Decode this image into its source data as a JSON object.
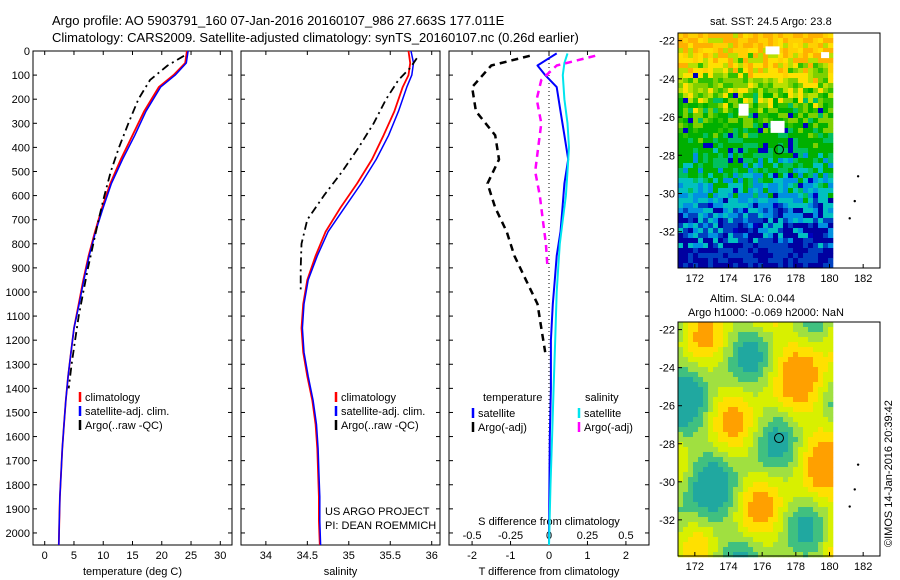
{
  "header": {
    "line1": "Argo profile: AO 5903791_160 07-Jan-2016 20160107_986 27.663S 177.011E",
    "line2": "Climatology: CARS2009. Satellite-adjusted climatology: synTS_20160107.nc (0.26d earlier)"
  },
  "map_top": {
    "title": "sat. SST: 24.5  Argo: 23.8",
    "yticks": [
      "-22",
      "-24",
      "-26",
      "-28",
      "-30",
      "-32"
    ],
    "xticks": [
      "172",
      "174",
      "176",
      "178",
      "180",
      "182"
    ],
    "float_lon": 177.0,
    "float_lat": -27.7
  },
  "map_bottom": {
    "title_line1": "Altim. SLA: 0.044",
    "title_line2": "Argo h1000: -0.069 h2000: NaN",
    "yticks": [
      "-22",
      "-24",
      "-26",
      "-28",
      "-30",
      "-32"
    ],
    "xticks": [
      "172",
      "174",
      "176",
      "178",
      "180",
      "182"
    ],
    "float_lon": 177.0,
    "float_lat": -27.7
  },
  "credit": "©IMOS 14-Jan-2016 20:39:42",
  "project": {
    "line1": "US ARGO PROJECT",
    "line2": "PI: DEAN ROEMMICH"
  },
  "colors": {
    "climatology": "#ff0000",
    "satellite": "#0000ff",
    "argo": "#000000",
    "sal_satellite": "#00e5ee",
    "sal_argo": "#ff00ff"
  },
  "chart_data": [
    {
      "type": "line",
      "xlabel": "temperature (deg C)",
      "ylabel": "",
      "xlim": [
        -2,
        32
      ],
      "ylim": [
        2050,
        0
      ],
      "xticks": [
        "0",
        "5",
        "10",
        "15",
        "20",
        "25",
        "30"
      ],
      "yticks": [
        "0",
        "100",
        "200",
        "300",
        "400",
        "500",
        "600",
        "700",
        "800",
        "900",
        "1000",
        "1100",
        "1200",
        "1300",
        "1400",
        "1500",
        "1600",
        "1700",
        "1800",
        "1900",
        "2000"
      ],
      "legend": [
        "climatology",
        "satellite-adj. clim.",
        "Argo(..raw -QC)"
      ],
      "series": [
        {
          "name": "climatology",
          "x": [
            24.3,
            24.0,
            22.0,
            19.5,
            17.0,
            15.0,
            13.0,
            11.2,
            9.8,
            8.6,
            7.5,
            6.6,
            5.8,
            5.0,
            4.5,
            4.0,
            3.6,
            3.3,
            3.0,
            2.8,
            2.6,
            2.5,
            2.4
          ],
          "y": [
            0,
            50,
            100,
            150,
            250,
            350,
            450,
            550,
            650,
            750,
            850,
            950,
            1050,
            1150,
            1250,
            1350,
            1450,
            1550,
            1650,
            1750,
            1850,
            1950,
            2050
          ]
        },
        {
          "name": "satellite-adj. clim.",
          "x": [
            24.5,
            24.2,
            22.3,
            19.8,
            17.3,
            15.4,
            13.3,
            11.4,
            10.0,
            8.7,
            7.6,
            6.7,
            5.9,
            5.0,
            4.5,
            4.0,
            3.6,
            3.3,
            3.0,
            2.8,
            2.6,
            2.5,
            2.4
          ],
          "y": [
            0,
            50,
            100,
            150,
            250,
            350,
            450,
            550,
            650,
            750,
            850,
            950,
            1050,
            1150,
            1250,
            1350,
            1450,
            1550,
            1650,
            1750,
            1850,
            1950,
            2050
          ]
        },
        {
          "name": "Argo(..raw -QC)",
          "x": [
            23.8,
            21.0,
            18.0,
            16.0,
            14.3,
            12.7,
            11.3,
            10.2,
            9.2,
            8.3,
            7.4,
            6.6,
            5.8,
            5.2,
            4.6,
            4.1
          ],
          "y": [
            20,
            60,
            120,
            200,
            300,
            400,
            500,
            600,
            700,
            800,
            900,
            1000,
            1100,
            1200,
            1300,
            1400
          ]
        }
      ]
    },
    {
      "type": "line",
      "xlabel": "salinity",
      "xlim": [
        33.7,
        36.1
      ],
      "ylim": [
        2050,
        0
      ],
      "xticks": [
        "34",
        "34.5",
        "35",
        "35.5",
        "36"
      ],
      "legend": [
        "climatology",
        "satellite-adj. clim.",
        "Argo(..raw -QC)"
      ],
      "series": [
        {
          "name": "climatology",
          "x": [
            35.72,
            35.74,
            35.72,
            35.65,
            35.55,
            35.42,
            35.28,
            35.1,
            34.9,
            34.72,
            34.6,
            34.5,
            34.45,
            34.43,
            34.45,
            34.5,
            34.56,
            34.6,
            34.62,
            34.63,
            34.64,
            34.64,
            34.65
          ],
          "y": [
            0,
            50,
            100,
            150,
            250,
            350,
            450,
            550,
            650,
            750,
            850,
            950,
            1050,
            1150,
            1250,
            1350,
            1450,
            1550,
            1650,
            1750,
            1850,
            1950,
            2050
          ]
        },
        {
          "name": "satellite-adj. clim.",
          "x": [
            35.75,
            35.78,
            35.76,
            35.7,
            35.6,
            35.48,
            35.33,
            35.15,
            34.95,
            34.75,
            34.62,
            34.51,
            34.46,
            34.44,
            34.46,
            34.51,
            34.57,
            34.61,
            34.63,
            34.64,
            34.65,
            34.65,
            34.66
          ],
          "y": [
            0,
            50,
            100,
            150,
            250,
            350,
            450,
            550,
            650,
            750,
            850,
            950,
            1050,
            1150,
            1250,
            1350,
            1450,
            1550,
            1650,
            1750,
            1850,
            1950,
            2050
          ]
        },
        {
          "name": "Argo(..raw -QC)",
          "x": [
            35.82,
            35.74,
            35.6,
            35.45,
            35.3,
            35.12,
            34.92,
            34.7,
            34.5,
            34.43,
            34.42,
            34.42
          ],
          "y": [
            30,
            70,
            120,
            200,
            300,
            400,
            500,
            600,
            700,
            800,
            900,
            1000
          ]
        }
      ]
    },
    {
      "type": "line",
      "xlabel": "T difference from climatology",
      "xlabel_top": "S difference from climatology",
      "xlim": [
        -2.6,
        2.6
      ],
      "ylim": [
        2050,
        0
      ],
      "xticks": [
        "-2",
        "-1",
        "0",
        "1",
        "2"
      ],
      "xticks_s": [
        "-0.5",
        "-0.25",
        "0",
        "0.25",
        "0.5"
      ],
      "legend_groups": [
        {
          "title": "temperature",
          "items": [
            "satellite",
            "Argo(-adj)"
          ]
        },
        {
          "title": "salinity",
          "items": [
            "satellite",
            "Argo(-adj)"
          ]
        }
      ],
      "series": [
        {
          "name": "temperature satellite",
          "x": [
            0.2,
            0.0,
            -0.3,
            -0.1,
            0.2,
            0.3,
            0.4,
            0.5,
            0.4,
            0.35,
            0.3,
            0.2,
            0.15,
            0.1,
            0.05,
            0.05,
            0.02,
            0.01,
            0.0
          ],
          "y": [
            10,
            30,
            60,
            100,
            150,
            250,
            350,
            450,
            550,
            650,
            750,
            850,
            950,
            1050,
            1200,
            1400,
            1600,
            1800,
            2050
          ]
        },
        {
          "name": "temperature Argo(-adj)",
          "x": [
            -0.5,
            -1.5,
            -2.0,
            -1.9,
            -1.4,
            -1.3,
            -1.6,
            -1.4,
            -1.1,
            -0.9,
            -0.6,
            -0.3,
            -0.2,
            -0.1
          ],
          "y": [
            20,
            60,
            150,
            250,
            350,
            450,
            550,
            650,
            750,
            850,
            950,
            1050,
            1150,
            1250
          ]
        },
        {
          "name": "salinity satellite",
          "x": [
            0.12,
            0.1,
            0.09,
            0.1,
            0.12,
            0.13,
            0.12,
            0.11,
            0.09,
            0.07,
            0.06,
            0.05,
            0.04,
            0.03,
            0.02,
            0.01,
            0.0
          ],
          "y": [
            10,
            50,
            100,
            200,
            300,
            400,
            500,
            600,
            700,
            800,
            900,
            1000,
            1200,
            1400,
            1600,
            1800,
            2050
          ]
        },
        {
          "name": "salinity Argo(-adj)",
          "x": [
            0.3,
            0.05,
            -0.05,
            -0.08,
            -0.05,
            -0.07,
            -0.09,
            -0.06,
            -0.04,
            -0.02,
            -0.01
          ],
          "y": [
            20,
            60,
            120,
            200,
            300,
            400,
            500,
            600,
            700,
            800,
            900
          ]
        }
      ]
    }
  ]
}
